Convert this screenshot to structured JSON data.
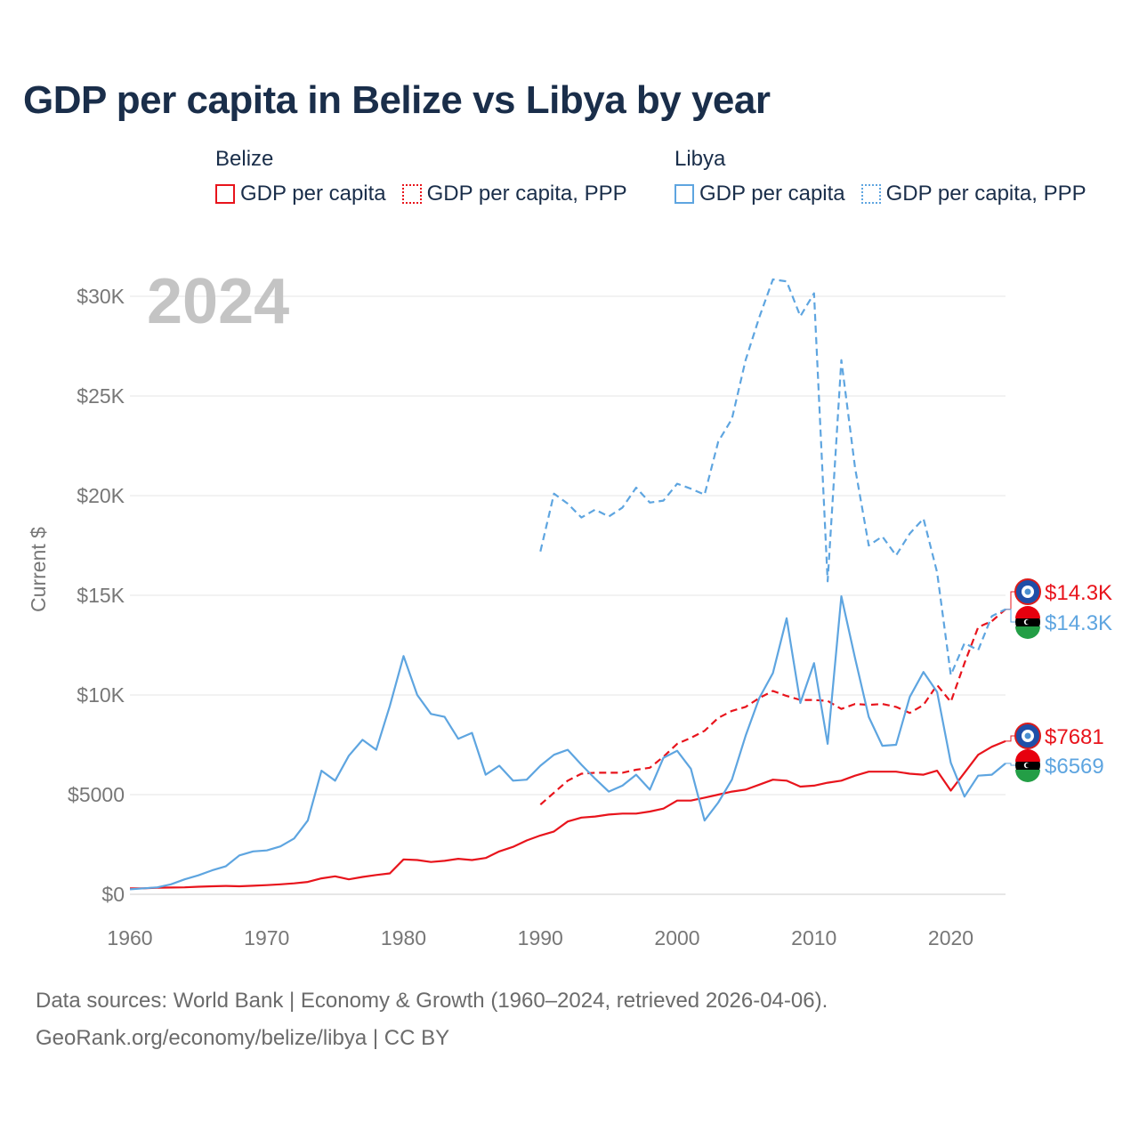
{
  "title": "GDP per capita in Belize vs Libya by year",
  "legend": {
    "belize": {
      "country": "Belize",
      "gdp": "GDP per capita",
      "ppp": "GDP per capita, PPP"
    },
    "libya": {
      "country": "Libya",
      "gdp": "GDP per capita",
      "ppp": "GDP per capita, PPP"
    }
  },
  "colors": {
    "belize": "#e8141c",
    "libya": "#5ea5e0",
    "grid": "#e6e6e6",
    "axis_text": "#777777",
    "year_watermark": "#c4c4c4"
  },
  "chart_data": {
    "type": "line",
    "year_label": "2024",
    "ylabel": "Current $",
    "xlim": [
      1960,
      2024
    ],
    "ylim": [
      0,
      32000
    ],
    "x_ticks": [
      1960,
      1970,
      1980,
      1990,
      2000,
      2010,
      2020
    ],
    "y_ticks": [
      {
        "value": 0,
        "label": "$0"
      },
      {
        "value": 5000,
        "label": "$5000"
      },
      {
        "value": 10000,
        "label": "$10K"
      },
      {
        "value": 15000,
        "label": "$15K"
      },
      {
        "value": 20000,
        "label": "$20K"
      },
      {
        "value": 25000,
        "label": "$25K"
      },
      {
        "value": 30000,
        "label": "$30K"
      }
    ],
    "series": [
      {
        "name": "Belize GDP per capita",
        "country": "belize",
        "style": "solid",
        "start_year": 1960,
        "values": [
          300,
          300,
          330,
          340,
          350,
          380,
          400,
          420,
          400,
          430,
          460,
          500,
          550,
          620,
          800,
          900,
          750,
          870,
          970,
          1050,
          1750,
          1720,
          1620,
          1680,
          1780,
          1720,
          1820,
          2150,
          2380,
          2700,
          2950,
          3150,
          3650,
          3850,
          3900,
          4000,
          4050,
          4050,
          4150,
          4300,
          4700,
          4700,
          4850,
          5000,
          5150,
          5250,
          5500,
          5750,
          5700,
          5400,
          5450,
          5600,
          5700,
          5950,
          6150,
          6150,
          6150,
          6050,
          6000,
          6200,
          5200,
          6100,
          7000,
          7400,
          7681
        ]
      },
      {
        "name": "Belize GDP per capita, PPP",
        "country": "belize",
        "style": "dashed",
        "start_year": 1990,
        "values": [
          4500,
          5100,
          5700,
          6050,
          6100,
          6100,
          6100,
          6250,
          6350,
          6900,
          7550,
          7850,
          8200,
          8850,
          9200,
          9400,
          9850,
          10200,
          9950,
          9750,
          9750,
          9700,
          9300,
          9550,
          9500,
          9550,
          9400,
          9100,
          9500,
          10500,
          9650,
          11600,
          13400,
          13700,
          14300
        ]
      },
      {
        "name": "Libya GDP per capita",
        "country": "libya",
        "style": "solid",
        "start_year": 1960,
        "values": [
          250,
          300,
          350,
          500,
          750,
          950,
          1200,
          1400,
          1950,
          2150,
          2200,
          2400,
          2800,
          3700,
          6200,
          5700,
          6950,
          7750,
          7250,
          9450,
          11950,
          10000,
          9050,
          8900,
          7800,
          8100,
          6000,
          6450,
          5700,
          5750,
          6450,
          7000,
          7250,
          6500,
          5800,
          5150,
          5450,
          6000,
          5250,
          6850,
          7200,
          6300,
          3700,
          4600,
          5750,
          7950,
          9850,
          11100,
          13850,
          9600,
          11600,
          7550,
          14950,
          11850,
          8900,
          7450,
          7500,
          9900,
          11150,
          10150,
          6600,
          4900,
          5950,
          6000,
          6569
        ]
      },
      {
        "name": "Libya GDP per capita, PPP",
        "country": "libya",
        "style": "dashed",
        "start_year": 1990,
        "values": [
          17200,
          20100,
          19600,
          18900,
          19300,
          18950,
          19400,
          20400,
          19650,
          19750,
          20600,
          20350,
          20050,
          22700,
          23850,
          26800,
          28950,
          30850,
          30750,
          29000,
          30150,
          15700,
          26800,
          21400,
          17500,
          17950,
          17000,
          18100,
          18850,
          16150,
          11000,
          12600,
          12250,
          13950,
          14300
        ]
      }
    ],
    "end_labels": [
      {
        "country": "belize",
        "flag": "belize-flag-icon",
        "label": "$14.3K",
        "ref_value": 14300
      },
      {
        "country": "libya",
        "flag": "libya-flag-icon",
        "label": "$14.3K",
        "ref_value": 14300
      },
      {
        "country": "belize",
        "flag": "belize-flag-icon",
        "label": "$7681",
        "ref_value": 7681
      },
      {
        "country": "libya",
        "flag": "libya-flag-icon",
        "label": "$6569",
        "ref_value": 6569
      }
    ]
  },
  "sources": {
    "line1": "Data sources: World Bank | Economy & Growth (1960–2024, retrieved 2026-04-06).",
    "line2": "GeoRank.org/economy/belize/libya | CC BY"
  }
}
